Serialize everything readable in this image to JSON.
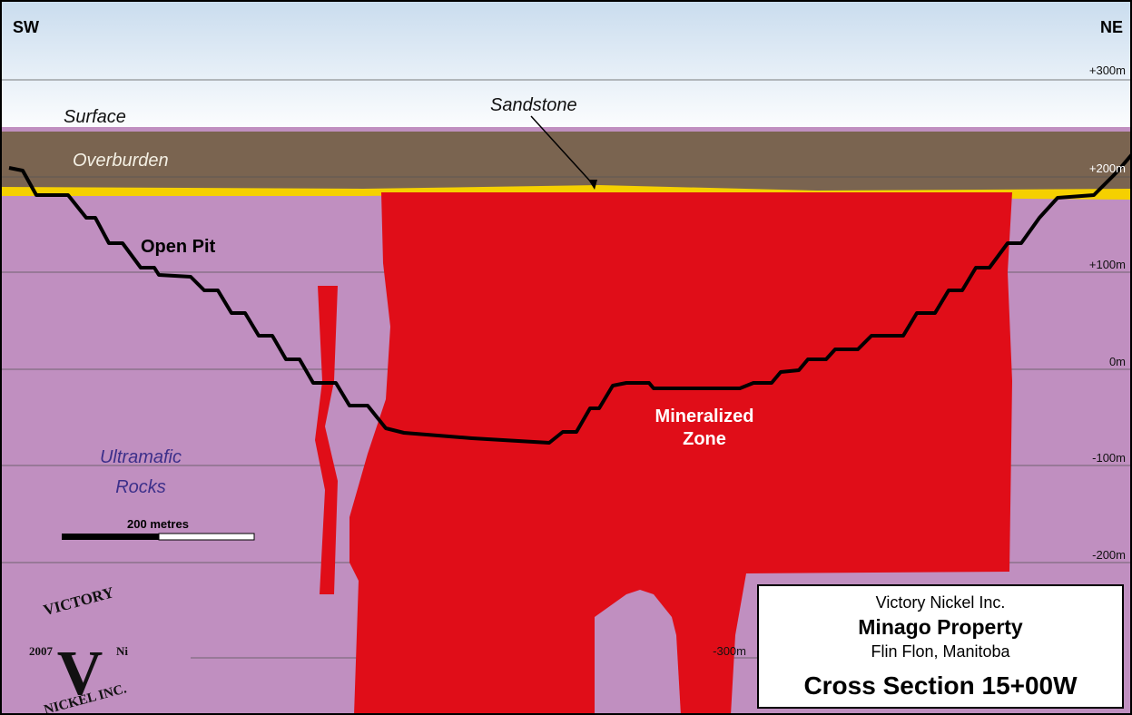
{
  "orientation": {
    "left": "SW",
    "right": "NE"
  },
  "layers": {
    "surface": "Surface",
    "sandstone": "Sandstone",
    "overburden": "Overburden",
    "open_pit": "Open Pit",
    "mineralized_zone": [
      "Mineralized",
      "Zone"
    ],
    "host_rock": [
      "Ultramafic",
      "Rocks"
    ]
  },
  "elevations": [
    "+300m",
    "+200m",
    "+100m",
    "0m",
    "-100m",
    "-200m",
    "-300m"
  ],
  "scale_bar": "200 metres",
  "logo": {
    "top": "VICTORY",
    "letter": "V",
    "year": "2007",
    "symbol": "Ni",
    "bottom": "NICKEL INC."
  },
  "title_block": {
    "company": "Victory Nickel Inc.",
    "property": "Minago Property",
    "location": "Flin Flon, Manitoba",
    "section": "Cross Section 15+00W"
  }
}
